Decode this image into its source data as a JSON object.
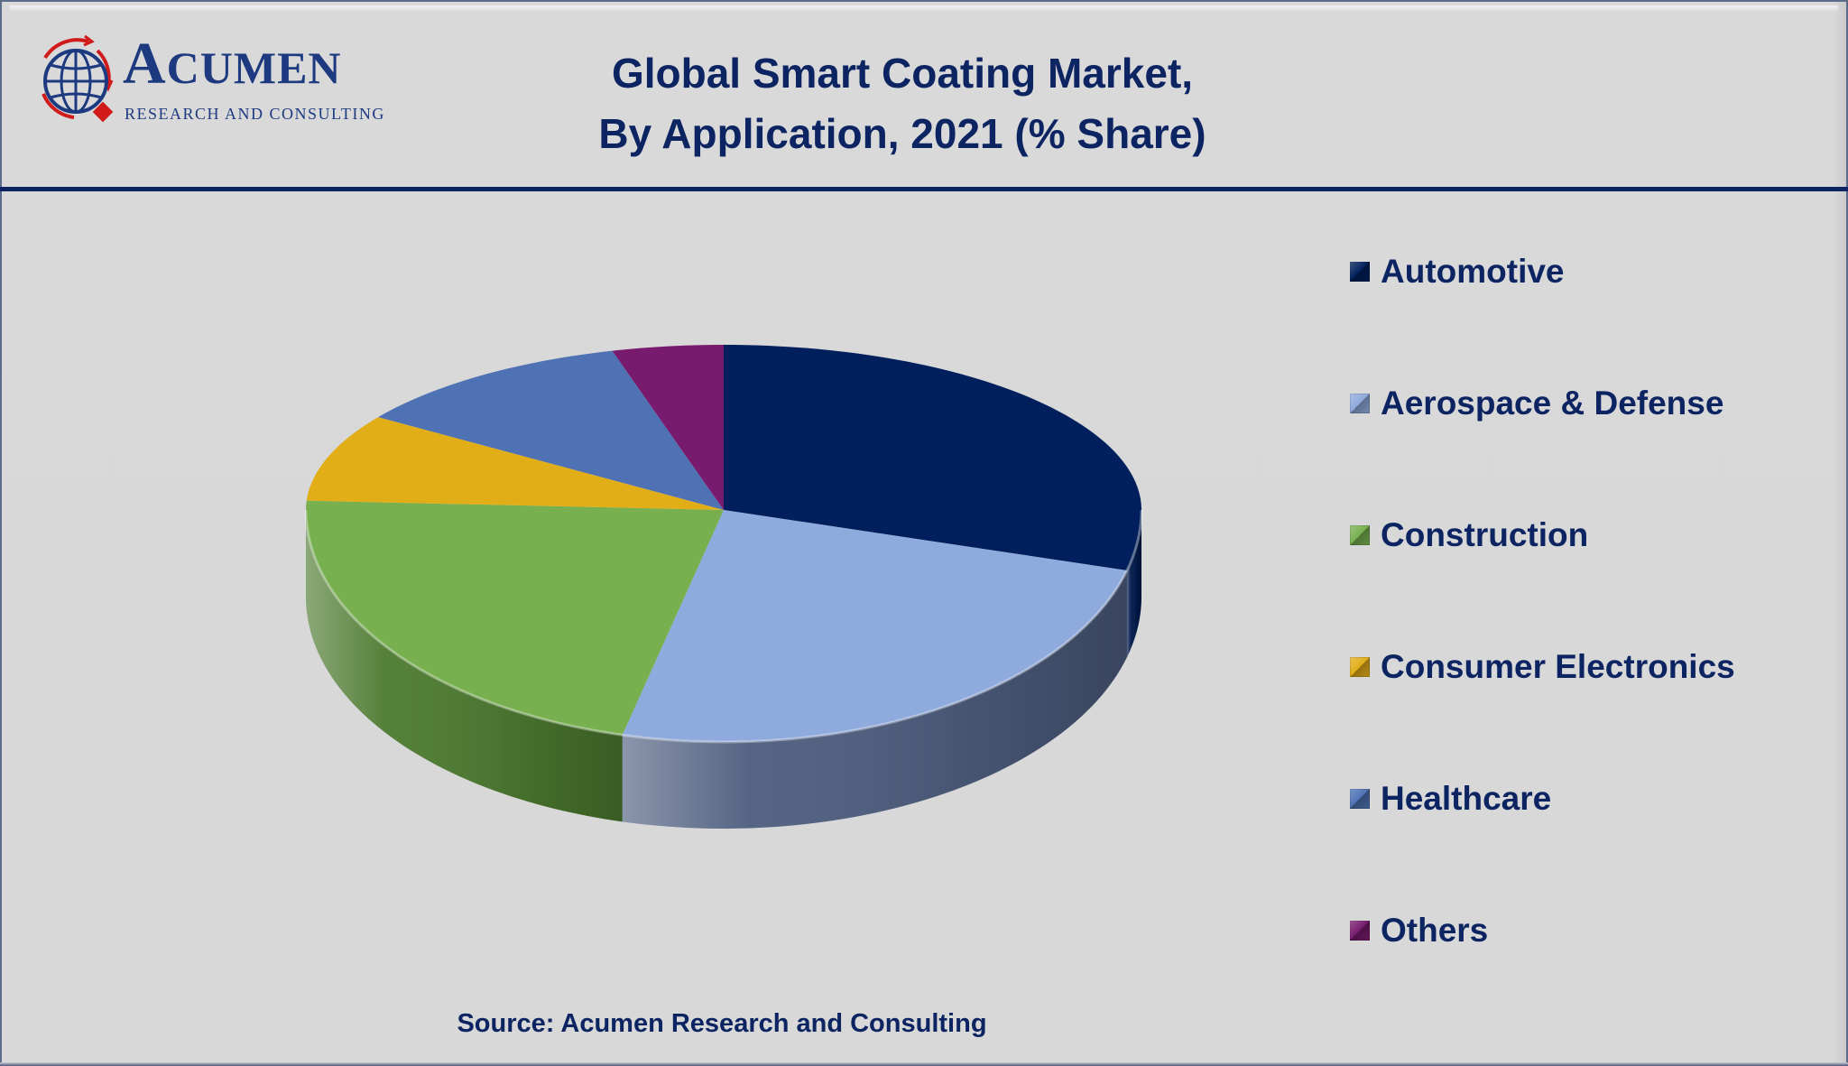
{
  "brand": {
    "name_initial": "A",
    "name_rest": "CUMEN",
    "tagline": "RESEARCH AND CONSULTING"
  },
  "source": "Source: Acumen Research and Consulting",
  "colors": {
    "title": "#0c2461",
    "background": "#d9d9d9"
  },
  "chart_data": {
    "type": "pie",
    "style": "3d",
    "title": "Global Smart Coating Market,",
    "subtitle": "By Application, 2021 (% Share)",
    "unit": "%",
    "legend_position": "right",
    "data_labels": false,
    "slices": [
      {
        "label": "Automotive",
        "value": 29.2,
        "color": "#001f5c",
        "side": "#00184a"
      },
      {
        "label": "Aerospace & Defense",
        "value": 24.7,
        "color": "#8faadc",
        "side": "#4d5d7e"
      },
      {
        "label": "Construction",
        "value": 22.0,
        "color": "#78b050",
        "side": "#4c7a2f"
      },
      {
        "label": "Consumer Electronics",
        "value": 8.6,
        "color": "#e2ae18",
        "side": "#a9820f"
      },
      {
        "label": "Healthcare",
        "value": 11.2,
        "color": "#4e72b4",
        "side": "#344f80"
      },
      {
        "label": "Others",
        "value": 4.3,
        "color": "#781b6e",
        "side": "#52124b"
      }
    ]
  }
}
